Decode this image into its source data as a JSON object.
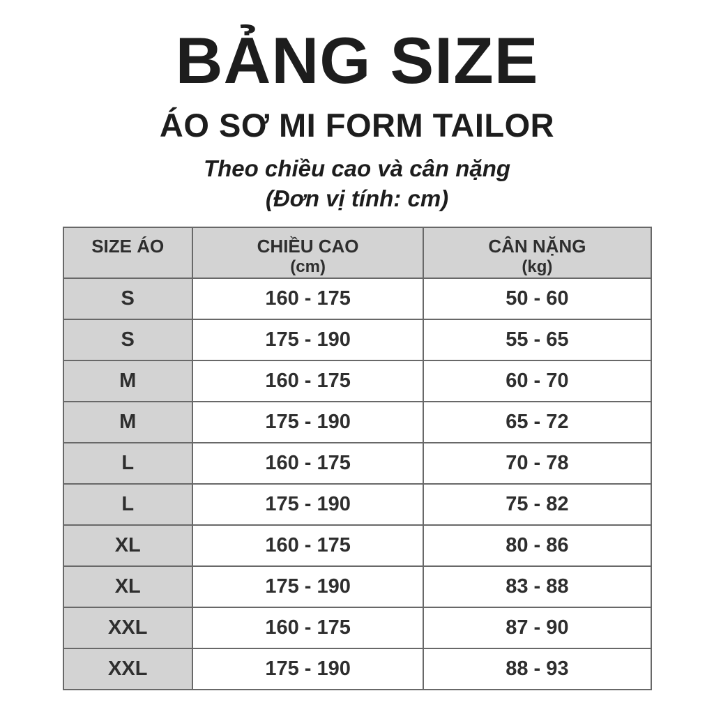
{
  "title": "BẢNG SIZE",
  "subtitle": "ÁO SƠ MI FORM TAILOR",
  "tagline": "Theo chiều cao và cân nặng",
  "unit_note": "(Đơn vị tính: cm)",
  "colors": {
    "header_bg": "#d3d3d3",
    "first_column_bg": "#d3d3d3",
    "border": "#686868",
    "text": "#2e2e2e",
    "background": "#ffffff"
  },
  "table": {
    "columns": [
      {
        "label": "SIZE ÁO",
        "sub": ""
      },
      {
        "label": "CHIỀU CAO",
        "sub": "(cm)"
      },
      {
        "label": "CÂN NẶNG",
        "sub": "(kg)"
      }
    ],
    "rows": [
      {
        "size": "S",
        "height": "160 - 175",
        "weight": "50 - 60"
      },
      {
        "size": "S",
        "height": "175 - 190",
        "weight": "55 - 65"
      },
      {
        "size": "M",
        "height": "160 - 175",
        "weight": "60 - 70"
      },
      {
        "size": "M",
        "height": "175 - 190",
        "weight": "65 - 72"
      },
      {
        "size": "L",
        "height": "160 - 175",
        "weight": "70 - 78"
      },
      {
        "size": "L",
        "height": "175 - 190",
        "weight": "75 - 82"
      },
      {
        "size": "XL",
        "height": "160 - 175",
        "weight": "80 - 86"
      },
      {
        "size": "XL",
        "height": "175 - 190",
        "weight": "83 - 88"
      },
      {
        "size": "XXL",
        "height": "160 - 175",
        "weight": "87 - 90"
      },
      {
        "size": "XXL",
        "height": "175 - 190",
        "weight": "88 - 93"
      }
    ]
  }
}
